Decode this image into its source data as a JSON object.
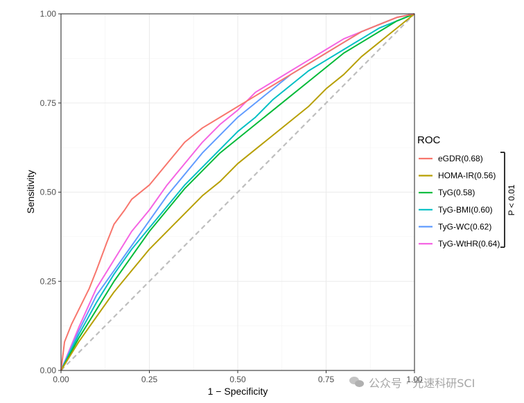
{
  "chart_data": {
    "type": "line",
    "title": "",
    "xlabel": "1 − Specificity",
    "ylabel": "Sensitivity",
    "xlim": [
      0,
      1
    ],
    "ylim": [
      0,
      1
    ],
    "x_ticks": [
      "0.00",
      "0.25",
      "0.50",
      "0.75",
      "1.00"
    ],
    "y_ticks": [
      "0.00",
      "0.25",
      "0.50",
      "0.75",
      "1.00"
    ],
    "grid": true,
    "legend": {
      "title": "ROC",
      "position": "right"
    },
    "annotation": "P < 0.01",
    "reference_line": {
      "x": [
        0,
        1
      ],
      "y": [
        0,
        1
      ],
      "color": "#bebebe",
      "style": "dashed"
    },
    "series": [
      {
        "name": "eGDR(0.68)",
        "color": "#F8766D",
        "x": [
          0,
          0.01,
          0.03,
          0.05,
          0.08,
          0.1,
          0.13,
          0.15,
          0.18,
          0.2,
          0.25,
          0.3,
          0.35,
          0.4,
          0.45,
          0.5,
          0.55,
          0.6,
          0.65,
          0.7,
          0.75,
          0.8,
          0.85,
          0.9,
          0.95,
          1.0
        ],
        "y": [
          0,
          0.08,
          0.13,
          0.17,
          0.23,
          0.28,
          0.36,
          0.41,
          0.45,
          0.48,
          0.52,
          0.58,
          0.64,
          0.68,
          0.71,
          0.74,
          0.77,
          0.8,
          0.83,
          0.86,
          0.89,
          0.92,
          0.95,
          0.97,
          0.99,
          1.0
        ]
      },
      {
        "name": "HOMA-IR(0.56)",
        "color": "#B79F00",
        "x": [
          0,
          0.05,
          0.1,
          0.15,
          0.2,
          0.25,
          0.3,
          0.35,
          0.4,
          0.45,
          0.5,
          0.55,
          0.6,
          0.65,
          0.7,
          0.75,
          0.8,
          0.85,
          0.9,
          0.95,
          1.0
        ],
        "y": [
          0,
          0.08,
          0.15,
          0.22,
          0.28,
          0.34,
          0.39,
          0.44,
          0.49,
          0.53,
          0.58,
          0.62,
          0.66,
          0.7,
          0.74,
          0.79,
          0.83,
          0.88,
          0.92,
          0.96,
          1.0
        ]
      },
      {
        "name": "TyG(0.58)",
        "color": "#00BA38",
        "x": [
          0,
          0.05,
          0.1,
          0.15,
          0.2,
          0.25,
          0.3,
          0.35,
          0.4,
          0.45,
          0.5,
          0.55,
          0.6,
          0.65,
          0.7,
          0.75,
          0.8,
          0.85,
          0.9,
          0.95,
          1.0
        ],
        "y": [
          0,
          0.09,
          0.17,
          0.25,
          0.32,
          0.39,
          0.45,
          0.51,
          0.56,
          0.61,
          0.65,
          0.69,
          0.73,
          0.77,
          0.81,
          0.85,
          0.89,
          0.92,
          0.95,
          0.98,
          1.0
        ]
      },
      {
        "name": "TyG-BMI(0.60)",
        "color": "#00BFC4",
        "x": [
          0,
          0.05,
          0.1,
          0.15,
          0.2,
          0.25,
          0.3,
          0.35,
          0.4,
          0.45,
          0.5,
          0.55,
          0.6,
          0.65,
          0.7,
          0.75,
          0.8,
          0.85,
          0.9,
          0.95,
          1.0
        ],
        "y": [
          0,
          0.1,
          0.19,
          0.27,
          0.34,
          0.4,
          0.46,
          0.52,
          0.57,
          0.62,
          0.67,
          0.71,
          0.76,
          0.8,
          0.84,
          0.87,
          0.9,
          0.93,
          0.96,
          0.98,
          1.0
        ]
      },
      {
        "name": "TyG-WC(0.62)",
        "color": "#619CFF",
        "x": [
          0,
          0.05,
          0.1,
          0.15,
          0.2,
          0.25,
          0.3,
          0.35,
          0.4,
          0.45,
          0.5,
          0.55,
          0.6,
          0.65,
          0.7,
          0.75,
          0.8,
          0.85,
          0.9,
          0.95,
          1.0
        ],
        "y": [
          0,
          0.11,
          0.21,
          0.28,
          0.35,
          0.42,
          0.49,
          0.55,
          0.61,
          0.66,
          0.71,
          0.75,
          0.79,
          0.83,
          0.86,
          0.89,
          0.92,
          0.95,
          0.97,
          0.99,
          1.0
        ]
      },
      {
        "name": "TyG-WtHR(0.64)",
        "color": "#F564E3",
        "x": [
          0,
          0.05,
          0.1,
          0.15,
          0.2,
          0.25,
          0.3,
          0.35,
          0.4,
          0.45,
          0.5,
          0.55,
          0.6,
          0.65,
          0.7,
          0.75,
          0.8,
          0.85,
          0.9,
          0.95,
          1.0
        ],
        "y": [
          0,
          0.12,
          0.23,
          0.31,
          0.39,
          0.45,
          0.52,
          0.58,
          0.64,
          0.69,
          0.73,
          0.78,
          0.81,
          0.84,
          0.87,
          0.9,
          0.93,
          0.95,
          0.97,
          0.99,
          1.0
        ]
      }
    ]
  },
  "watermark": {
    "icon": "wechat-icon",
    "text": "公众号 · 光速科研SCI"
  }
}
